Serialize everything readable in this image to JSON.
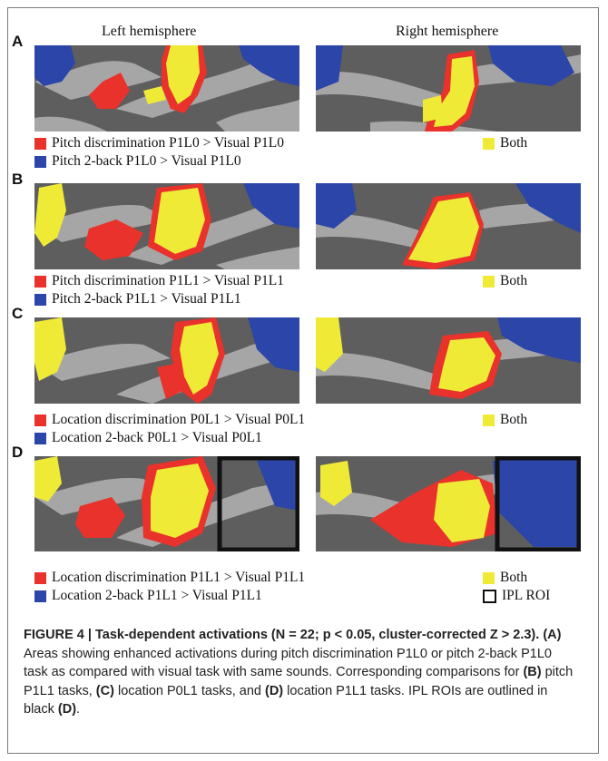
{
  "header": {
    "left": "Left hemisphere",
    "right": "Right hemisphere"
  },
  "colors": {
    "red": "#e8322b",
    "blue": "#2c45a8",
    "yellow": "#eeea36",
    "dark_gray": "#5e5e5e",
    "light_gray": "#a6a6a6"
  },
  "panels": [
    {
      "letter": "A",
      "red_label": "Pitch discrimination P1L0 > Visual P1L0",
      "blue_label": "Pitch 2-back P1L0 > Visual P1L0",
      "both_label": "Both"
    },
    {
      "letter": "B",
      "red_label": "Pitch discrimination P1L1 > Visual P1L1",
      "blue_label": "Pitch 2-back P1L1 > Visual P1L1",
      "both_label": "Both"
    },
    {
      "letter": "C",
      "red_label": "Location discrimination P0L1 > Visual P0L1",
      "blue_label": "Location 2-back P0L1 > Visual P0L1",
      "both_label": "Both"
    },
    {
      "letter": "D",
      "red_label": "Location discrimination P1L1 > Visual P1L1",
      "blue_label": "Location 2-back P1L1 > Visual P1L1",
      "both_label": "Both",
      "roi_label": "IPL ROI"
    }
  ],
  "caption": {
    "figure_label": "FIGURE 4 | ",
    "title": "Task-dependent activations (N = 22; p < 0.05, cluster-corrected Z > 2.3).",
    "ref_a": "(A)",
    "text1": " Areas showing enhanced activations during pitch discrimination P1L0 or pitch 2-back P1L0 task as compared with visual task with same sounds. Corresponding comparisons for ",
    "ref_b": "(B)",
    "text2": " pitch P1L1 tasks, ",
    "ref_c": "(C)",
    "text3": " location P0L1 tasks, and ",
    "ref_d": "(D)",
    "text4": " location P1L1 tasks. IPL ROIs are outlined in black ",
    "ref_d2": "(D)",
    "text5": "."
  }
}
